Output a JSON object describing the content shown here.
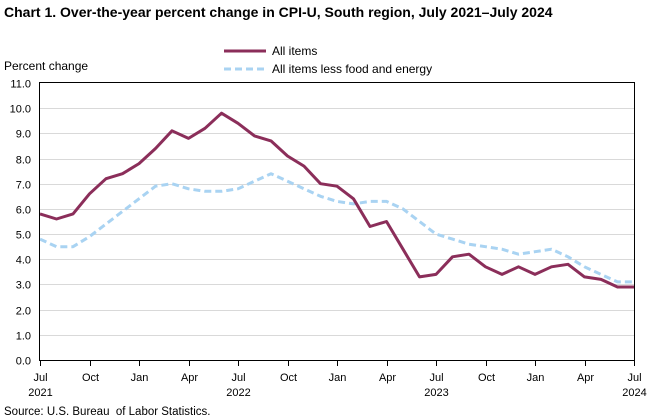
{
  "chart_data": {
    "type": "line",
    "title": "Chart 1. Over-the-year percent change in CPI-U, South region, July 2021–July 2024",
    "ylabel": "Percent change",
    "ylim": [
      0.0,
      11.0
    ],
    "yticks": [
      "0.0",
      "1.0",
      "2.0",
      "3.0",
      "4.0",
      "5.0",
      "6.0",
      "7.0",
      "8.0",
      "9.0",
      "10.0",
      "11.0"
    ],
    "x": [
      "Jul 2021",
      "Aug 2021",
      "Sep 2021",
      "Oct 2021",
      "Nov 2021",
      "Dec 2021",
      "Jan 2022",
      "Feb 2022",
      "Mar 2022",
      "Apr 2022",
      "May 2022",
      "Jun 2022",
      "Jul 2022",
      "Aug 2022",
      "Sep 2022",
      "Oct 2022",
      "Nov 2022",
      "Dec 2022",
      "Jan 2023",
      "Feb 2023",
      "Mar 2023",
      "Apr 2023",
      "May 2023",
      "Jun 2023",
      "Jul 2023",
      "Aug 2023",
      "Sep 2023",
      "Oct 2023",
      "Nov 2023",
      "Dec 2023",
      "Jan 2024",
      "Feb 2024",
      "Mar 2024",
      "Apr 2024",
      "May 2024",
      "Jun 2024",
      "Jul 2024"
    ],
    "xticks": [
      {
        "month": "Jul",
        "year": "2021"
      },
      {
        "month": "Oct",
        "year": ""
      },
      {
        "month": "Jan",
        "year": ""
      },
      {
        "month": "Apr",
        "year": ""
      },
      {
        "month": "Jul",
        "year": "2022"
      },
      {
        "month": "Oct",
        "year": ""
      },
      {
        "month": "Jan",
        "year": ""
      },
      {
        "month": "Apr",
        "year": ""
      },
      {
        "month": "Jul",
        "year": "2023"
      },
      {
        "month": "Oct",
        "year": ""
      },
      {
        "month": "Jan",
        "year": ""
      },
      {
        "month": "Apr",
        "year": ""
      },
      {
        "month": "Jul",
        "year": "2024"
      }
    ],
    "series": [
      {
        "name": "All items",
        "color": "#8b2e5a",
        "style": "solid",
        "values": [
          5.8,
          5.6,
          5.8,
          6.6,
          7.2,
          7.4,
          7.8,
          8.4,
          9.1,
          8.8,
          9.2,
          9.8,
          9.4,
          8.9,
          8.7,
          8.1,
          7.7,
          7.0,
          6.9,
          6.4,
          5.3,
          5.5,
          4.4,
          3.3,
          3.4,
          4.1,
          4.2,
          3.7,
          3.4,
          3.7,
          3.4,
          3.7,
          3.8,
          3.3,
          3.2,
          2.9,
          2.9
        ]
      },
      {
        "name": "All items less food and energy",
        "color": "#a9d3f2",
        "style": "dashed",
        "values": [
          4.8,
          4.5,
          4.5,
          4.9,
          5.4,
          5.9,
          6.4,
          6.9,
          7.0,
          6.8,
          6.7,
          6.7,
          6.8,
          7.1,
          7.4,
          7.1,
          6.8,
          6.5,
          6.3,
          6.2,
          6.3,
          6.3,
          6.0,
          5.5,
          5.0,
          4.8,
          4.6,
          4.5,
          4.4,
          4.2,
          4.3,
          4.4,
          4.1,
          3.7,
          3.4,
          3.1,
          3.1
        ]
      }
    ],
    "grid": true,
    "legend": "top-center",
    "source": "Source: U.S. Bureau  of Labor Statistics."
  }
}
